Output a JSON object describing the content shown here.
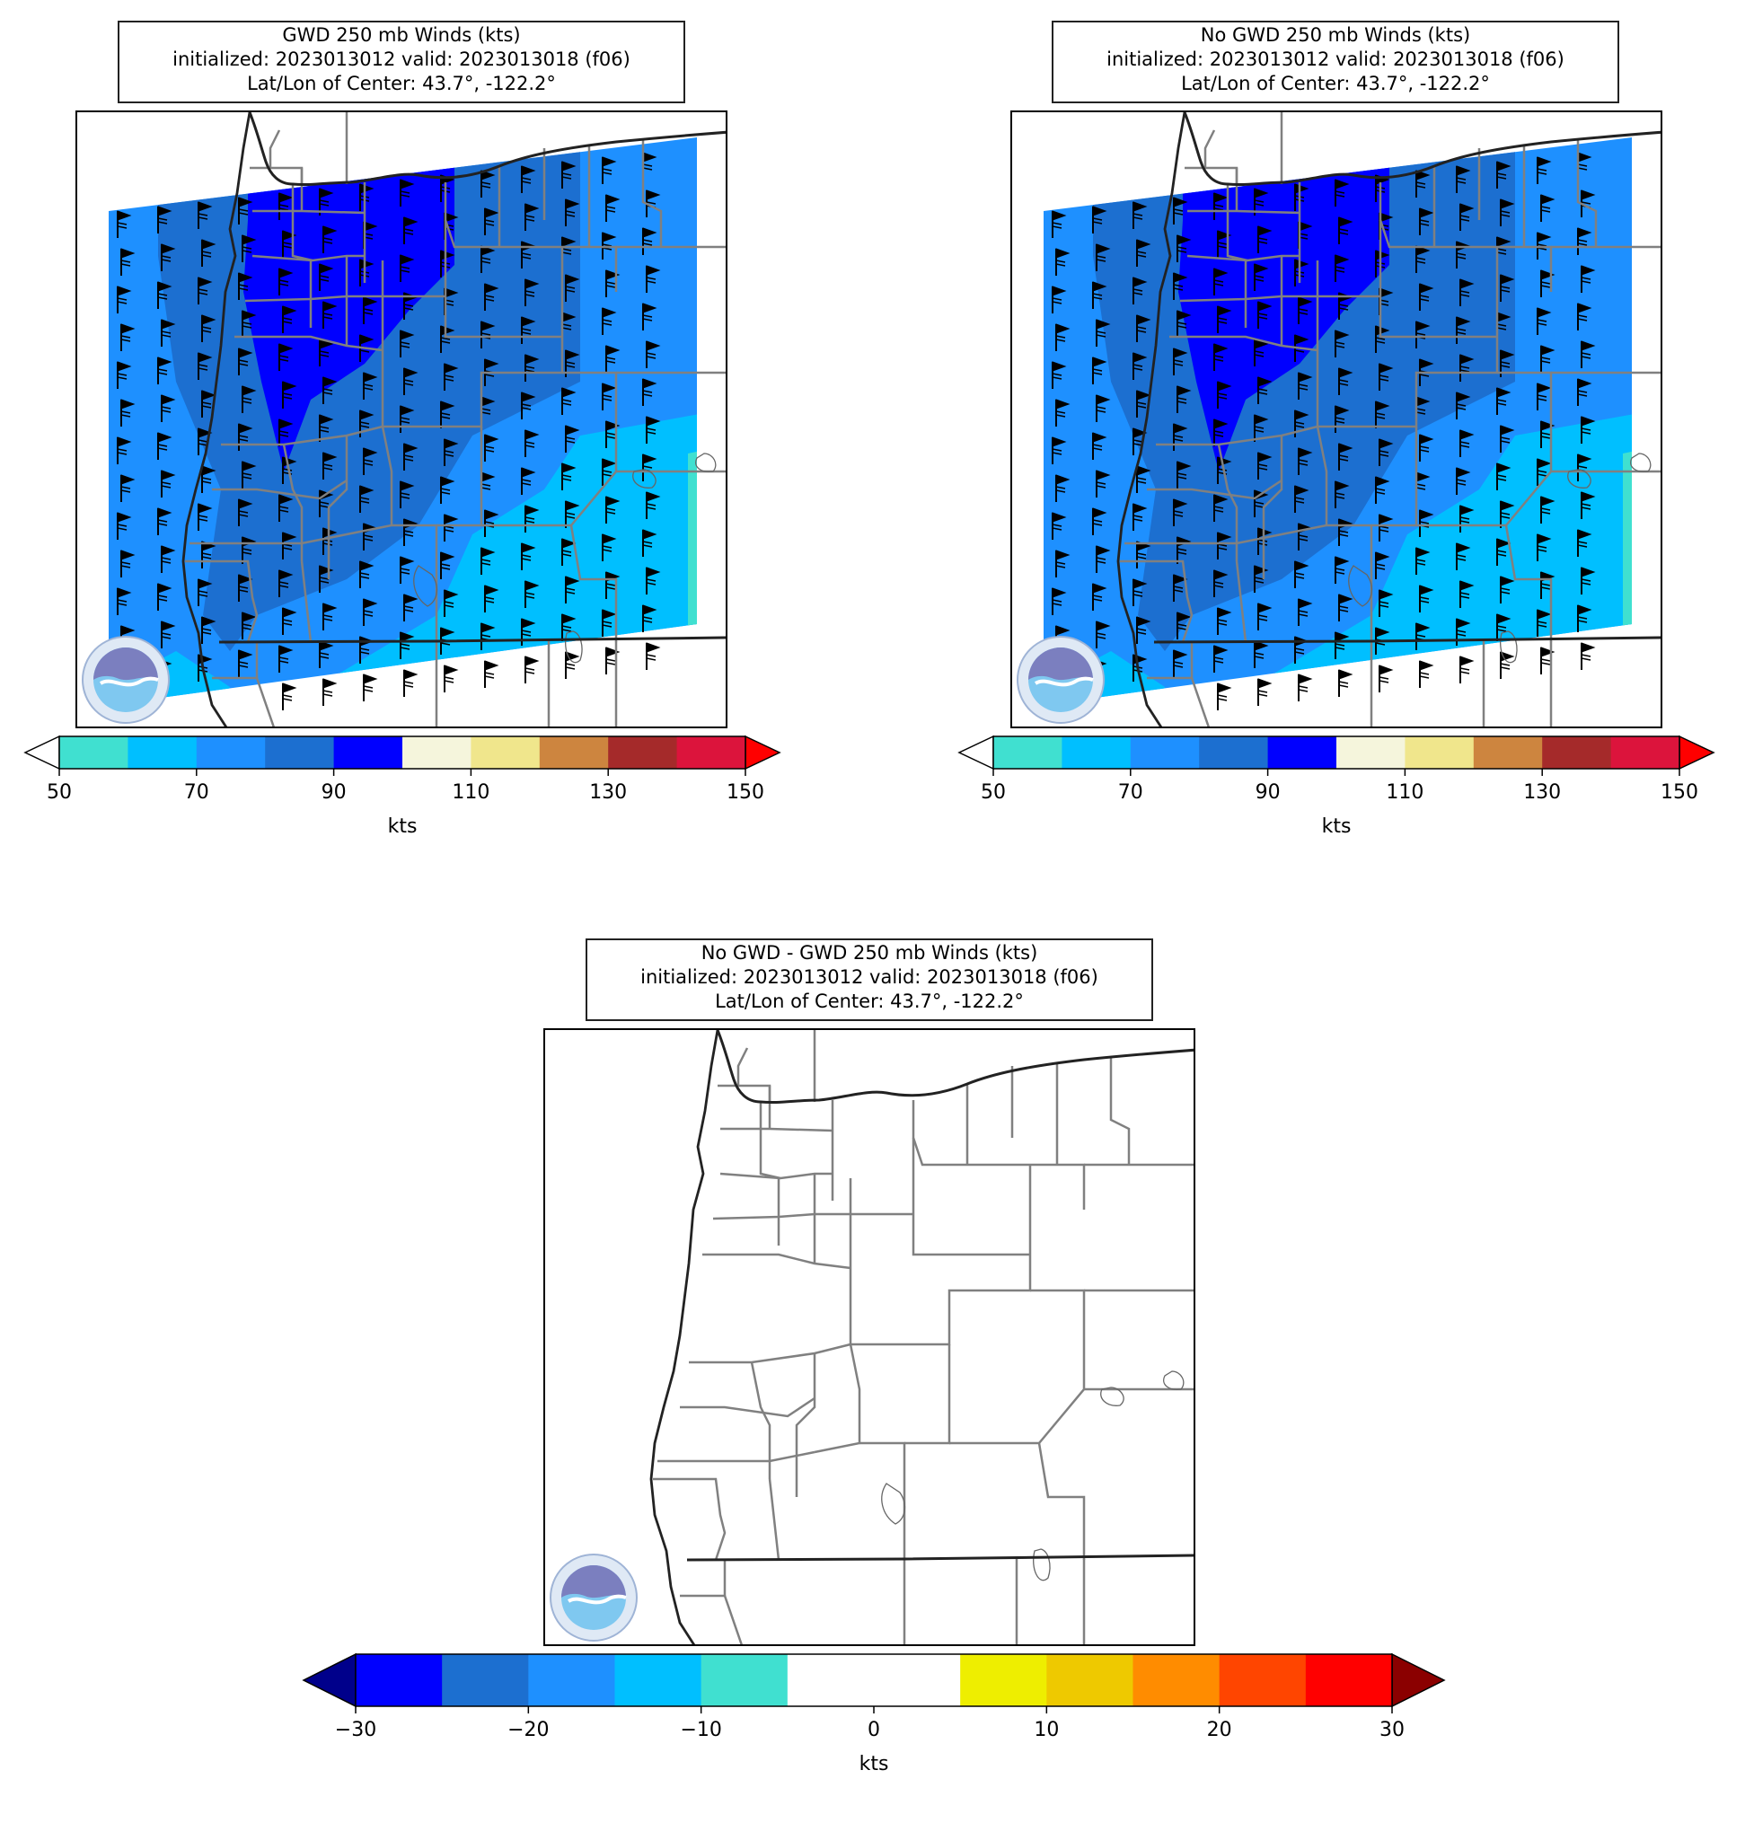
{
  "panels": [
    {
      "id": "gwd",
      "title_lines": [
        "GWD 250 mb Winds (kts)",
        "initialized: 2023013012 valid: 2023013018 (f06)",
        "Lat/Lon of Center: 43.7°, -122.2°"
      ],
      "colorbar": {
        "colors": [
          "#40e0d0",
          "#00bfff",
          "#1e90ff",
          "#1c6fd0",
          "#0000ff",
          "#f5f5dc",
          "#f0e68c",
          "#cd853f",
          "#a52a2a",
          "#dc143c"
        ],
        "under_color": "#ffffff",
        "over_color": "#ff0000",
        "ticks": [
          "50",
          "70",
          "90",
          "110",
          "130",
          "150"
        ],
        "units": "kts"
      },
      "wind_barbs": true,
      "logo": "noaa-logo"
    },
    {
      "id": "nogwd",
      "title_lines": [
        "No GWD 250 mb Winds (kts)",
        "initialized: 2023013012 valid: 2023013018 (f06)",
        "Lat/Lon of Center: 43.7°, -122.2°"
      ],
      "colorbar": {
        "colors": [
          "#40e0d0",
          "#00bfff",
          "#1e90ff",
          "#1c6fd0",
          "#0000ff",
          "#f5f5dc",
          "#f0e68c",
          "#cd853f",
          "#a52a2a",
          "#dc143c"
        ],
        "under_color": "#ffffff",
        "over_color": "#ff0000",
        "ticks": [
          "50",
          "70",
          "90",
          "110",
          "130",
          "150"
        ],
        "units": "kts"
      },
      "wind_barbs": true,
      "logo": "noaa-logo"
    },
    {
      "id": "diff",
      "title_lines": [
        "No GWD - GWD 250 mb Winds (kts)",
        "initialized: 2023013012 valid: 2023013018 (f06)",
        "Lat/Lon of Center: 43.7°, -122.2°"
      ],
      "colorbar": {
        "colors": [
          "#0000ff",
          "#1c6fd0",
          "#1e90ff",
          "#00bfff",
          "#40e0d0",
          "#ffffff",
          "#ffffff",
          "#eeee00",
          "#eec900",
          "#ff8c00",
          "#ff4500",
          "#ff0000"
        ],
        "under_color": "#00008b",
        "over_color": "#8b0000",
        "ticks": [
          "−30",
          "−20",
          "−10",
          "0",
          "10",
          "20",
          "30"
        ],
        "units": "kts"
      },
      "wind_barbs": false,
      "logo": "noaa-logo"
    }
  ]
}
